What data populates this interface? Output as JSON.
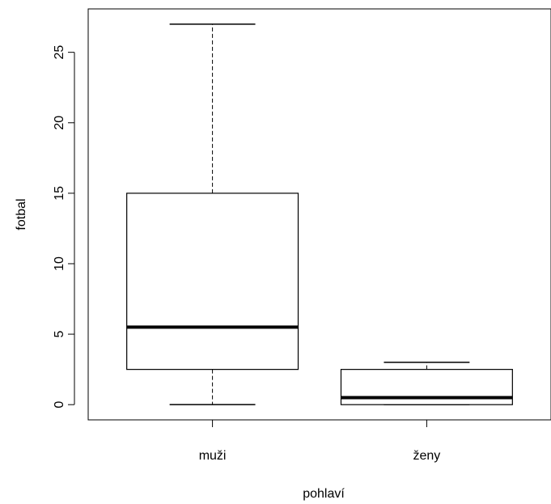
{
  "chart_data": {
    "type": "boxplot",
    "title": "",
    "xlabel": "pohlaví",
    "ylabel": "fotbal",
    "categories": [
      "muži",
      "ženy"
    ],
    "boxes": [
      {
        "category": "muži",
        "whisker_low": 0,
        "q1": 2.5,
        "median": 5.5,
        "q3": 15,
        "whisker_high": 27
      },
      {
        "category": "ženy",
        "whisker_low": 0,
        "q1": 0,
        "median": 0.5,
        "q3": 2.5,
        "whisker_high": 3
      }
    ],
    "yticks": [
      0,
      5,
      10,
      15,
      20,
      25
    ],
    "ytick_labels": [
      "0",
      "5",
      "10",
      "15",
      "20",
      "25"
    ],
    "ylim": [
      -1.08,
      28.08
    ],
    "grid": false,
    "legend": "none",
    "colors": {
      "box_fill": "#ffffff",
      "stroke": "#000000"
    }
  }
}
